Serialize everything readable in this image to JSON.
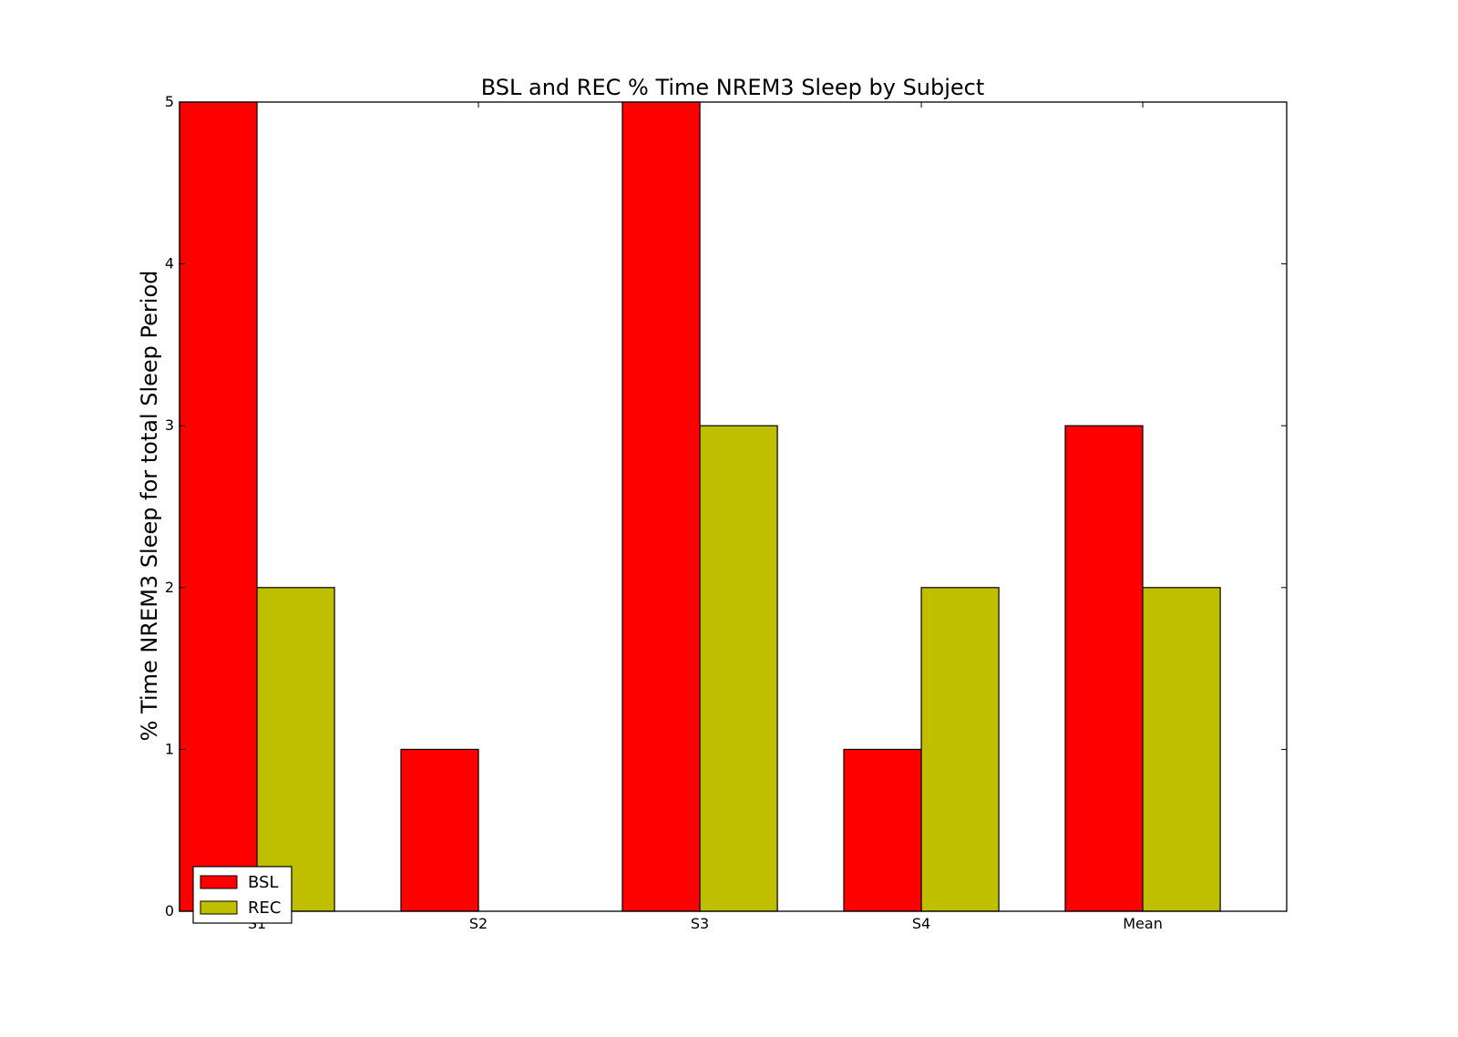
{
  "chart_data": {
    "type": "bar",
    "title": "BSL and REC % Time NREM3 Sleep by Subject",
    "xlabel": "",
    "ylabel": "% Time NREM3 Sleep for total Sleep Period",
    "categories": [
      "S1",
      "S2",
      "S3",
      "S4",
      "Mean"
    ],
    "series": [
      {
        "name": "BSL",
        "color": "#ff0000",
        "values": [
          5,
          1,
          5,
          1,
          3
        ]
      },
      {
        "name": "REC",
        "color": "#bfbf00",
        "values": [
          2,
          0,
          3,
          2,
          2
        ]
      }
    ],
    "ylim": [
      0,
      5
    ],
    "yticks": [
      "0",
      "1",
      "2",
      "3",
      "4",
      "5"
    ],
    "grid": false,
    "legend_position": "lower-left"
  }
}
